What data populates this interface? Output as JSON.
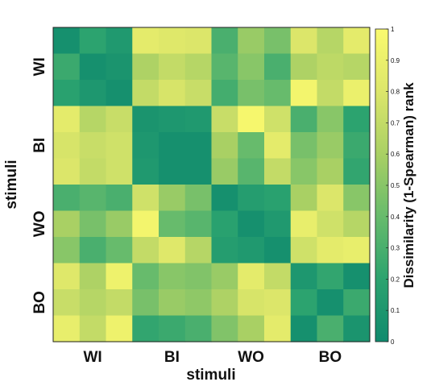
{
  "chart_data": {
    "type": "heatmap",
    "xlabel": "stimuli",
    "ylabel": "stimuli",
    "x_tick_labels": [
      "WI",
      "BI",
      "WO",
      "BO"
    ],
    "y_tick_labels": [
      "WI",
      "BI",
      "WO",
      "BO"
    ],
    "rows": 12,
    "cols": 12,
    "colorbar": {
      "label": "Dissimilarity (1-Spearman) rank",
      "range": [
        0,
        1
      ],
      "ticks": [
        "0",
        "0.1",
        "0.2",
        "0.3",
        "0.4",
        "0.5",
        "0.6",
        "0.7",
        "0.8",
        "0.9",
        "1"
      ],
      "colormap": [
        "#0f8a6e",
        "#2ca36f",
        "#67bb6c",
        "#a9d064",
        "#dce66a",
        "#fafa6e"
      ]
    },
    "values": [
      [
        0.05,
        0.2,
        0.12,
        0.85,
        0.82,
        0.8,
        0.3,
        0.55,
        0.45,
        0.8,
        0.65,
        0.85
      ],
      [
        0.25,
        0.05,
        0.08,
        0.62,
        0.7,
        0.65,
        0.35,
        0.5,
        0.3,
        0.62,
        0.68,
        0.65
      ],
      [
        0.18,
        0.1,
        0.05,
        0.7,
        0.78,
        0.72,
        0.28,
        0.45,
        0.4,
        0.95,
        0.7,
        0.9
      ],
      [
        0.85,
        0.65,
        0.72,
        0.08,
        0.1,
        0.12,
        0.72,
        0.97,
        0.75,
        0.3,
        0.5,
        0.2
      ],
      [
        0.78,
        0.72,
        0.75,
        0.1,
        0.05,
        0.05,
        0.6,
        0.4,
        0.85,
        0.45,
        0.55,
        0.25
      ],
      [
        0.8,
        0.7,
        0.75,
        0.12,
        0.05,
        0.05,
        0.55,
        0.35,
        0.7,
        0.5,
        0.6,
        0.22
      ],
      [
        0.3,
        0.35,
        0.3,
        0.75,
        0.55,
        0.45,
        0.05,
        0.15,
        0.18,
        0.6,
        0.8,
        0.5
      ],
      [
        0.6,
        0.45,
        0.55,
        0.95,
        0.4,
        0.35,
        0.18,
        0.05,
        0.12,
        0.88,
        0.75,
        0.65
      ],
      [
        0.5,
        0.3,
        0.4,
        0.7,
        0.82,
        0.65,
        0.15,
        0.12,
        0.05,
        0.75,
        0.85,
        0.88
      ],
      [
        0.82,
        0.62,
        0.92,
        0.4,
        0.5,
        0.48,
        0.55,
        0.85,
        0.7,
        0.1,
        0.22,
        0.05
      ],
      [
        0.72,
        0.65,
        0.7,
        0.45,
        0.55,
        0.52,
        0.62,
        0.78,
        0.8,
        0.2,
        0.05,
        0.25
      ],
      [
        0.88,
        0.7,
        0.92,
        0.22,
        0.25,
        0.3,
        0.48,
        0.6,
        0.85,
        0.05,
        0.3,
        0.08
      ]
    ]
  }
}
